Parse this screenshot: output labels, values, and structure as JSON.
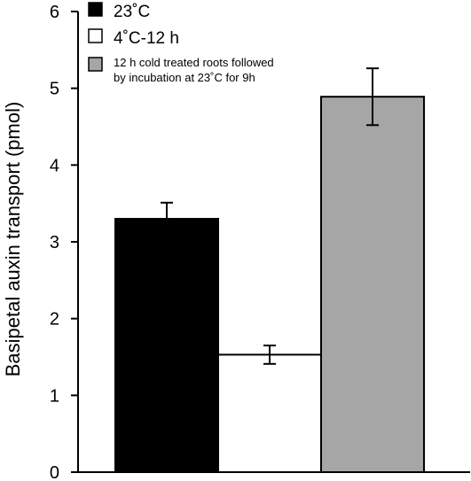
{
  "chart_data": {
    "type": "bar",
    "title": "",
    "xlabel": "",
    "ylabel": "Basipetal auxin transport (pmol)",
    "ylim": [
      0,
      6
    ],
    "yticks": [
      0,
      1,
      2,
      3,
      4,
      5,
      6
    ],
    "grid": false,
    "legend_position": "top-left",
    "series": [
      {
        "name": "23˚C",
        "color": "#000000",
        "value": 3.3,
        "error": 0.21
      },
      {
        "name": "4˚C-12 h",
        "color": "#ffffff",
        "value": 1.53,
        "error": 0.12
      },
      {
        "name": "12 h cold treated roots followed by incubation at 23˚C for 9h",
        "name_lines": [
          "12 h cold treated roots followed",
          "by incubation at 23˚C for 9h"
        ],
        "color": "#a6a6a6",
        "value": 4.89,
        "error": 0.37
      }
    ]
  }
}
